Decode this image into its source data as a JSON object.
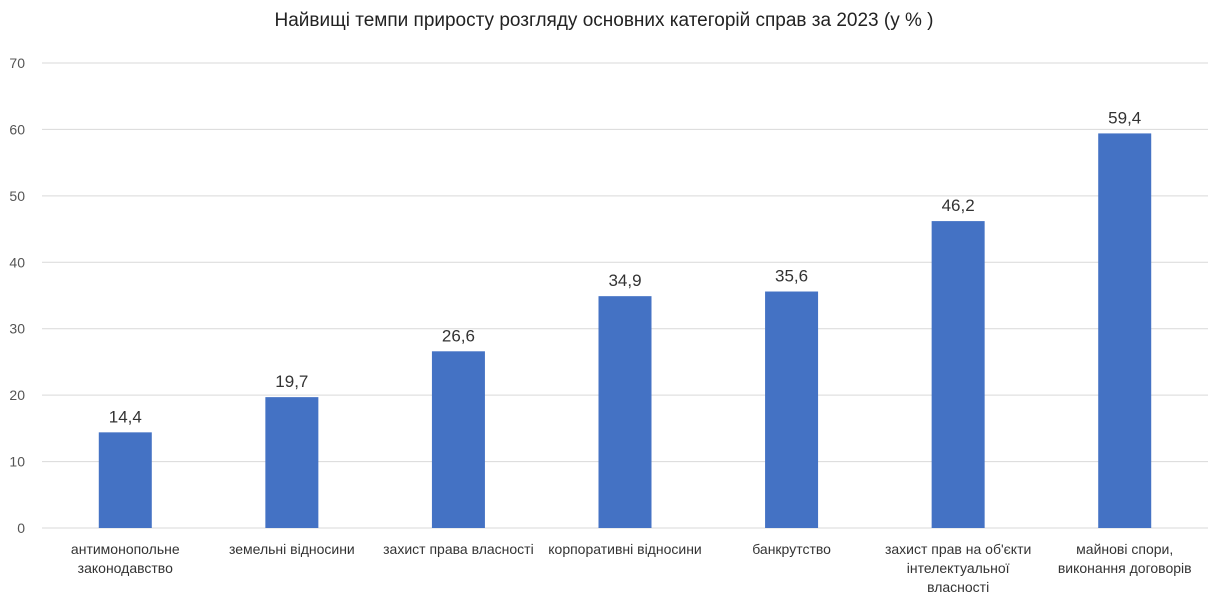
{
  "chart_data": {
    "type": "bar",
    "title": "Найвищі темпи приросту розгляду основних категорій справ за 2023 (у % )",
    "xlabel": "",
    "ylabel": "",
    "ylim": [
      0,
      70
    ],
    "yticks": [
      0,
      10,
      20,
      30,
      40,
      50,
      60,
      70
    ],
    "grid": true,
    "categories": [
      [
        "антимонопольне",
        "законодавство"
      ],
      [
        "земельні відносини"
      ],
      [
        "захист права власності"
      ],
      [
        "корпоративні відносини"
      ],
      [
        "банкрутство"
      ],
      [
        "захист прав на об'єкти",
        "інтелектуальної",
        "власності"
      ],
      [
        "майнові спори,",
        "виконання договорів"
      ]
    ],
    "values": [
      14.4,
      19.7,
      26.6,
      34.9,
      35.6,
      46.2,
      59.4
    ],
    "value_labels": [
      "14,4",
      "19,7",
      "26,6",
      "34,9",
      "35,6",
      "46,2",
      "59,4"
    ],
    "bar_color": "#4472C4",
    "grid_color": "#D9D9D9"
  }
}
